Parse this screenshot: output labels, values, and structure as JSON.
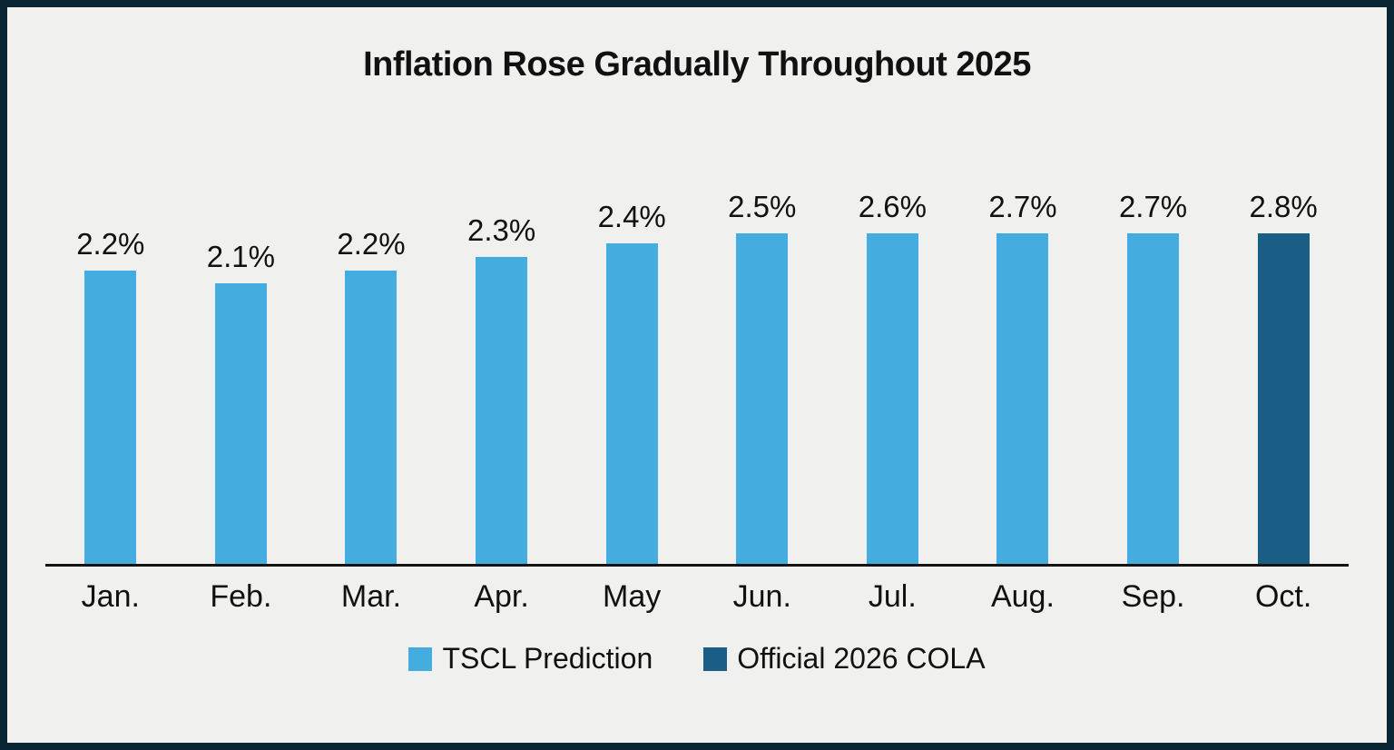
{
  "title": "Inflation Rose Gradually Throughout 2025",
  "colors": {
    "prediction_bar": "#45ACDF",
    "official_bar": "#1B5E85",
    "background": "#F0F0EF",
    "frame_border": "#0A2635",
    "axis_line": "#141414",
    "text": "#111111"
  },
  "legend": {
    "items": [
      {
        "label": "TSCL Prediction",
        "color": "#45ACDF"
      },
      {
        "label": "Official 2026 COLA",
        "color": "#1B5E85"
      }
    ]
  },
  "chart_data": {
    "type": "bar",
    "title": "Inflation Rose Gradually Throughout 2025",
    "categories": [
      "Jan.",
      "Feb.",
      "Mar.",
      "Apr.",
      "May",
      "Jun.",
      "Jul.",
      "Aug.",
      "Sep.",
      "Oct."
    ],
    "values": [
      2.2,
      2.1,
      2.2,
      2.3,
      2.4,
      2.5,
      2.6,
      2.7,
      2.7,
      2.8
    ],
    "value_labels": [
      "2.2%",
      "2.1%",
      "2.2%",
      "2.3%",
      "2.4%",
      "2.5%",
      "2.6%",
      "2.7%",
      "2.7%",
      "2.8%"
    ],
    "series_of_each_bar": [
      "TSCL Prediction",
      "TSCL Prediction",
      "TSCL Prediction",
      "TSCL Prediction",
      "TSCL Prediction",
      "TSCL Prediction",
      "TSCL Prediction",
      "TSCL Prediction",
      "TSCL Prediction",
      "Official 2026 COLA"
    ],
    "series": [
      {
        "name": "TSCL Prediction",
        "color": "#45ACDF"
      },
      {
        "name": "Official 2026 COLA",
        "color": "#1B5E85"
      }
    ],
    "xlabel": "",
    "ylabel": "",
    "ylim": [
      0,
      3.0
    ],
    "grid": false,
    "legend_position": "bottom",
    "data_labels_shown": true
  }
}
